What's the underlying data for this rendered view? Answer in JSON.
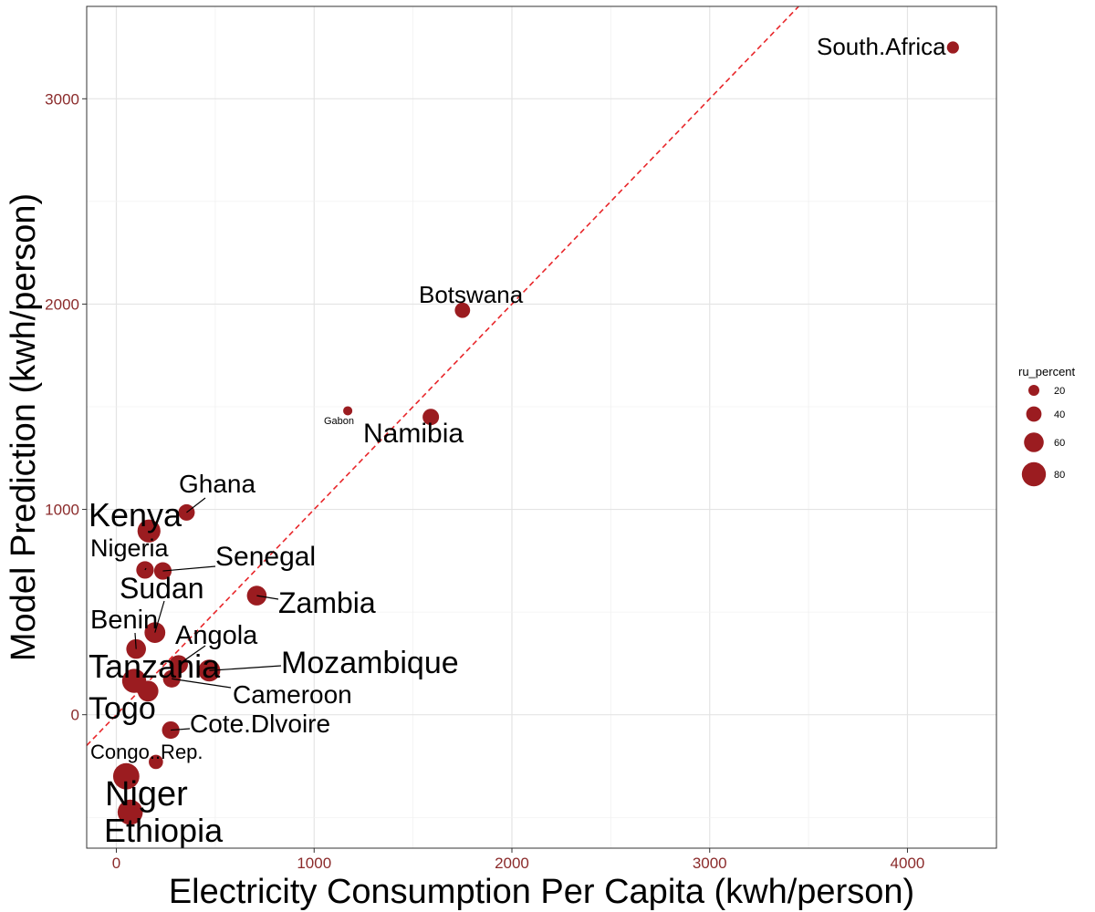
{
  "chart_data": {
    "type": "scatter",
    "title": "",
    "xlabel": "Electricity Consumption Per Capita (kwh/person)",
    "ylabel": "Model Prediction (kwh/person)",
    "xlim": [
      -150,
      4450
    ],
    "ylim": [
      -650,
      3450
    ],
    "xticks": [
      0,
      1000,
      2000,
      3000,
      4000
    ],
    "yticks": [
      0,
      1000,
      2000,
      3000
    ],
    "grid": true,
    "reference_line": {
      "type": "identity",
      "style": "dashed",
      "color": "#e8262a"
    },
    "point_color": "#9b1c20",
    "size_variable": "ru_percent",
    "legend": {
      "title": "ru_percent",
      "placement": "right",
      "entries": [
        20,
        40,
        60,
        80
      ]
    },
    "points": [
      {
        "label": "South.Africa",
        "x": 4230,
        "y": 3250,
        "size": 25
      },
      {
        "label": "Botswana",
        "x": 1750,
        "y": 1970,
        "size": 40
      },
      {
        "label": "Gabon",
        "x": 1170,
        "y": 1480,
        "size": 12
      },
      {
        "label": "Namibia",
        "x": 1590,
        "y": 1450,
        "size": 45
      },
      {
        "label": "Ghana",
        "x": 355,
        "y": 985,
        "size": 45
      },
      {
        "label": "Kenya",
        "x": 165,
        "y": 895,
        "size": 75
      },
      {
        "label": "Nigeria",
        "x": 145,
        "y": 705,
        "size": 50
      },
      {
        "label": "Senegal",
        "x": 235,
        "y": 700,
        "size": 50
      },
      {
        "label": "Zambia",
        "x": 710,
        "y": 580,
        "size": 60
      },
      {
        "label": "Sudan",
        "x": 195,
        "y": 400,
        "size": 65
      },
      {
        "label": "Benin",
        "x": 100,
        "y": 320,
        "size": 60
      },
      {
        "label": "Angola",
        "x": 315,
        "y": 245,
        "size": 55
      },
      {
        "label": "Mozambique",
        "x": 470,
        "y": 215,
        "size": 70
      },
      {
        "label": "Tanzania",
        "x": 90,
        "y": 165,
        "size": 80
      },
      {
        "label": "Cameroon",
        "x": 280,
        "y": 175,
        "size": 50
      },
      {
        "label": "Togo",
        "x": 160,
        "y": 115,
        "size": 65
      },
      {
        "label": "Cote.Dlvoire",
        "x": 275,
        "y": -75,
        "size": 50
      },
      {
        "label": "Congo..Rep.",
        "x": 200,
        "y": -230,
        "size": 35
      },
      {
        "label": "Niger",
        "x": 50,
        "y": -300,
        "size": 90
      },
      {
        "label": "Ethiopia",
        "x": 70,
        "y": -475,
        "size": 85
      }
    ]
  }
}
